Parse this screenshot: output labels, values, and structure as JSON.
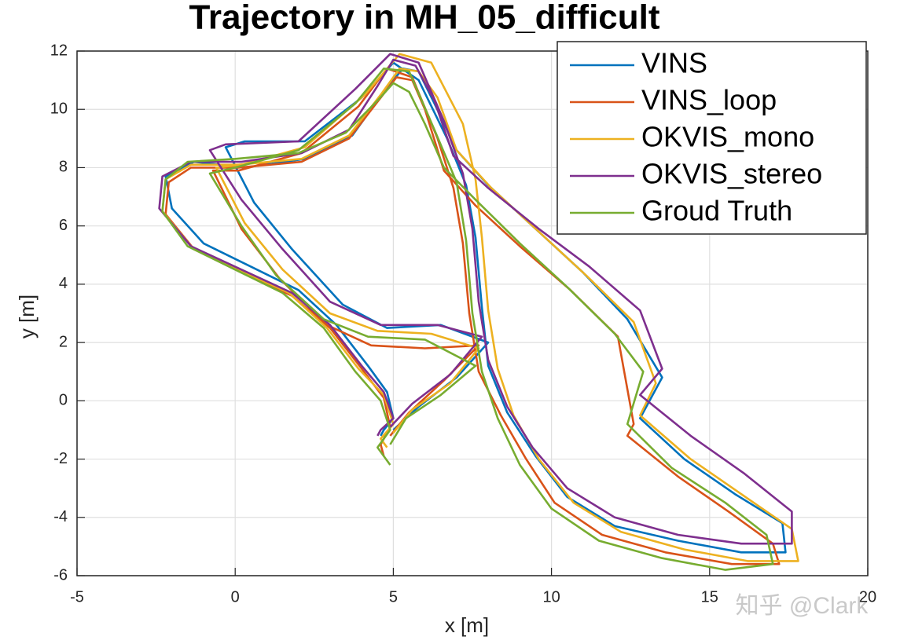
{
  "chart_data": {
    "type": "line",
    "title": "Trajectory in MH_05_difficult",
    "x_label": "x [m]",
    "y_label": "y [m]",
    "xlim": [
      -5,
      20
    ],
    "xticks": [
      -5,
      0,
      5,
      10,
      15,
      20
    ],
    "ylim": [
      -6,
      12
    ],
    "yticks": [
      -6,
      -4,
      -2,
      0,
      2,
      4,
      6,
      8,
      10,
      12
    ],
    "grid": true,
    "legend": "upper right",
    "watermark": "知乎 @Clark",
    "series": [
      {
        "name": "VINS",
        "color": "#0072bd",
        "x": [
          4.6,
          4.7,
          5.0,
          4.8,
          4.2,
          3.2,
          2.0,
          0.5,
          -1.0,
          -2.0,
          -2.2,
          -1.3,
          0.3,
          2.2,
          3.7,
          4.7,
          5.3,
          5.8,
          6.3,
          7.0,
          8.0,
          9.5,
          11.0,
          12.4,
          13.5,
          12.8,
          14.2,
          15.8,
          17.3,
          17.4,
          16.0,
          14.0,
          12.0,
          10.5,
          9.5,
          8.6,
          8.0,
          7.8,
          7.6,
          7.3,
          6.7,
          5.8,
          5.0,
          4.0,
          2.2,
          0.3,
          -0.3,
          0.6,
          1.8,
          3.4,
          4.8,
          6.5,
          8.0,
          7.0,
          5.8,
          5.0
        ],
        "values": [
          -1.2,
          -1.0,
          -0.6,
          0.3,
          1.2,
          2.6,
          3.8,
          4.6,
          5.4,
          6.6,
          7.7,
          8.2,
          8.0,
          8.3,
          9.1,
          10.6,
          11.4,
          11.3,
          10.2,
          8.6,
          7.4,
          5.9,
          4.4,
          2.8,
          0.8,
          -0.6,
          -2.0,
          -3.2,
          -4.2,
          -5.2,
          -5.2,
          -4.8,
          -4.3,
          -3.3,
          -1.9,
          -0.4,
          1.2,
          3.2,
          5.6,
          7.4,
          9.0,
          11.0,
          11.6,
          10.4,
          8.9,
          8.9,
          8.7,
          6.8,
          5.2,
          3.3,
          2.5,
          2.6,
          2.0,
          0.8,
          -0.2,
          -1.0
        ]
      },
      {
        "name": "VINS_loop",
        "color": "#d95319",
        "x": [
          4.7,
          4.6,
          4.9,
          4.7,
          4.0,
          3.0,
          1.8,
          0.2,
          -1.3,
          -2.2,
          -2.1,
          -1.4,
          0.1,
          2.1,
          3.6,
          4.6,
          5.1,
          5.6,
          6.0,
          6.6,
          7.6,
          9.0,
          10.6,
          12.1,
          12.6,
          12.4,
          14.0,
          15.6,
          17.0,
          17.2,
          15.7,
          13.6,
          11.6,
          10.1,
          9.2,
          8.4,
          7.7,
          7.4,
          7.2,
          6.9,
          6.4,
          5.6,
          4.8,
          3.9,
          2.1,
          0.1,
          -0.7,
          0.2,
          1.4,
          2.9,
          4.3,
          6.0,
          7.7,
          6.6,
          5.5,
          4.9
        ],
        "values": [
          -1.9,
          -1.5,
          -0.9,
          0.1,
          1.1,
          2.5,
          3.6,
          4.4,
          5.2,
          6.4,
          7.5,
          8.0,
          8.0,
          8.2,
          9.0,
          10.4,
          11.1,
          11.0,
          10.0,
          7.9,
          6.7,
          5.3,
          3.8,
          2.2,
          -0.8,
          -1.2,
          -2.6,
          -3.8,
          -4.9,
          -5.6,
          -5.6,
          -5.2,
          -4.6,
          -3.5,
          -2.0,
          -0.5,
          1.0,
          3.0,
          5.4,
          7.3,
          9.0,
          11.1,
          11.4,
          10.1,
          8.5,
          7.9,
          7.9,
          5.9,
          4.2,
          2.6,
          1.9,
          1.8,
          1.9,
          0.7,
          -0.4,
          -1.2
        ]
      },
      {
        "name": "OKVIS_mono",
        "color": "#edb120",
        "x": [
          4.8,
          4.6,
          5.0,
          4.7,
          3.9,
          2.9,
          1.7,
          0.1,
          -1.4,
          -2.3,
          -2.2,
          -1.4,
          0.1,
          2.1,
          3.6,
          4.6,
          5.2,
          5.8,
          6.4,
          7.0,
          8.1,
          9.6,
          11.1,
          12.6,
          13.3,
          12.8,
          14.4,
          16.0,
          17.6,
          17.8,
          16.2,
          14.2,
          12.2,
          10.7,
          9.6,
          8.8,
          8.3,
          8.0,
          7.8,
          7.6,
          7.2,
          6.2,
          5.2,
          4.1,
          2.2,
          0.2,
          -0.6,
          0.3,
          1.5,
          3.0,
          4.5,
          6.2,
          7.7,
          6.8,
          5.6,
          5.0
        ],
        "values": [
          -1.6,
          -1.3,
          -0.8,
          0.2,
          1.1,
          2.5,
          3.7,
          4.5,
          5.3,
          6.5,
          7.6,
          8.1,
          8.1,
          8.3,
          9.1,
          10.5,
          11.4,
          11.3,
          10.4,
          8.6,
          7.3,
          5.8,
          4.3,
          2.7,
          0.6,
          -0.5,
          -2.0,
          -3.2,
          -4.4,
          -5.5,
          -5.5,
          -5.1,
          -4.5,
          -3.5,
          -2.0,
          -0.5,
          1.1,
          3.1,
          5.6,
          7.6,
          9.5,
          11.6,
          11.9,
          10.5,
          8.7,
          8.1,
          8.0,
          6.1,
          4.5,
          3.0,
          2.4,
          2.3,
          1.8,
          0.6,
          -0.3,
          -1.1
        ]
      },
      {
        "name": "OKVIS_stereo",
        "color": "#7e2f8e",
        "x": [
          4.5,
          4.6,
          5.0,
          4.7,
          4.0,
          3.0,
          1.8,
          0.2,
          -1.4,
          -2.4,
          -2.3,
          -1.4,
          0.2,
          2.1,
          3.6,
          4.5,
          5.0,
          5.7,
          6.3,
          6.9,
          8.0,
          9.6,
          11.2,
          12.8,
          13.5,
          12.8,
          14.4,
          16.1,
          17.6,
          17.6,
          16.0,
          14.0,
          12.0,
          10.5,
          9.4,
          8.6,
          8.0,
          7.7,
          7.5,
          7.2,
          6.6,
          5.8,
          4.9,
          3.8,
          2.0,
          -0.3,
          -0.8,
          0.2,
          1.5,
          3.0,
          4.6,
          6.4,
          7.8,
          6.8,
          5.6,
          4.9
        ],
        "values": [
          -1.2,
          -1.0,
          -0.6,
          0.3,
          1.2,
          2.6,
          3.7,
          4.5,
          5.3,
          6.6,
          7.7,
          8.2,
          8.2,
          8.5,
          9.3,
          10.8,
          11.7,
          11.5,
          10.3,
          8.4,
          7.3,
          5.9,
          4.6,
          3.1,
          1.1,
          0.2,
          -1.2,
          -2.5,
          -3.8,
          -4.9,
          -4.9,
          -4.6,
          -4.0,
          -3.0,
          -1.6,
          -0.2,
          1.4,
          3.4,
          5.9,
          7.8,
          9.6,
          11.6,
          11.9,
          10.7,
          8.9,
          8.8,
          8.6,
          6.9,
          5.2,
          3.4,
          2.6,
          2.6,
          2.2,
          0.9,
          -0.1,
          -0.9
        ]
      },
      {
        "name": "Groud Truth",
        "color": "#77ac30",
        "x": [
          4.9,
          4.5,
          4.9,
          4.6,
          3.8,
          2.8,
          1.5,
          0,
          -1.5,
          -2.3,
          -2.2,
          -1.5,
          0,
          2,
          3.5,
          4.5,
          5.0,
          5.5,
          6.0,
          6.6,
          7.6,
          9.0,
          10.5,
          12.0,
          12.9,
          12.4,
          13.8,
          15.5,
          16.8,
          17.0,
          15.5,
          13.5,
          11.5,
          10.0,
          9.0,
          8.3,
          7.8,
          7.5,
          7.3,
          7.0,
          6.3,
          5.5,
          4.7,
          3.8,
          2.0,
          0.0,
          -0.8,
          0.2,
          1.3,
          2.8,
          4.2,
          6.0,
          7.6,
          6.5,
          5.4,
          4.9
        ],
        "values": [
          -2.2,
          -1.6,
          -1.0,
          0.0,
          1.0,
          2.5,
          3.7,
          4.5,
          5.3,
          6.5,
          7.6,
          8.2,
          8.3,
          8.5,
          9.2,
          10.3,
          10.9,
          10.6,
          9.5,
          8.0,
          6.9,
          5.4,
          3.9,
          2.3,
          1.0,
          -0.8,
          -2.3,
          -3.5,
          -4.6,
          -5.6,
          -5.8,
          -5.4,
          -4.8,
          -3.7,
          -2.2,
          -0.6,
          1.0,
          3.0,
          5.5,
          7.5,
          9.3,
          11.3,
          11.4,
          10.2,
          8.6,
          8.0,
          7.8,
          6.0,
          4.3,
          2.8,
          2.2,
          2.1,
          1.2,
          0.2,
          -0.6,
          -1.5
        ]
      }
    ]
  }
}
